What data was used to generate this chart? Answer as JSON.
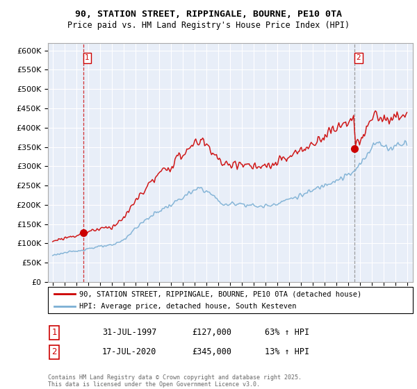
{
  "title1": "90, STATION STREET, RIPPINGALE, BOURNE, PE10 0TA",
  "title2": "Price paid vs. HM Land Registry's House Price Index (HPI)",
  "legend_line1": "90, STATION STREET, RIPPINGALE, BOURNE, PE10 0TA (detached house)",
  "legend_line2": "HPI: Average price, detached house, South Kesteven",
  "sale1_date": "31-JUL-1997",
  "sale1_price": "£127,000",
  "sale1_hpi": "63% ↑ HPI",
  "sale2_date": "17-JUL-2020",
  "sale2_price": "£345,000",
  "sale2_hpi": "13% ↑ HPI",
  "footnote": "Contains HM Land Registry data © Crown copyright and database right 2025.\nThis data is licensed under the Open Government Licence v3.0.",
  "red_color": "#cc0000",
  "blue_color": "#7bafd4",
  "background_color": "#e8eef8",
  "sale1_year": 1997.58,
  "sale1_price_val": 127000,
  "sale2_year": 2020.54,
  "sale2_price_val": 345000,
  "xstart": 1995,
  "xend": 2025
}
